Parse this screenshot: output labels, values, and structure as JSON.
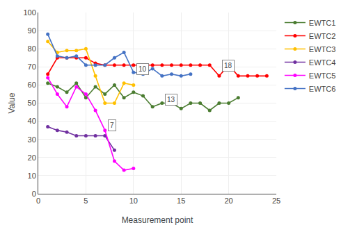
{
  "chart_data": {
    "type": "line",
    "x_label": "Measurement point",
    "y_label": "Value",
    "marker": "circle",
    "line_style": "solid",
    "series": [
      {
        "name": "EWTC1",
        "color": "#4a7c30",
        "x": [
          1,
          2,
          3,
          4,
          5,
          6,
          7,
          8,
          9,
          10,
          11,
          12,
          13,
          14,
          15,
          16,
          17,
          18,
          19,
          20,
          21
        ],
        "values": [
          61,
          59,
          56,
          61,
          53,
          59,
          55,
          60,
          53,
          56,
          54,
          48,
          50,
          50,
          47,
          50,
          50,
          46,
          50,
          50,
          53
        ]
      },
      {
        "name": "EWTC2",
        "color": "#ff0000",
        "x": [
          1,
          2,
          3,
          4,
          5,
          6,
          7,
          8,
          9,
          10,
          11,
          12,
          13,
          14,
          15,
          16,
          17,
          18,
          19,
          20,
          21,
          22,
          23,
          24
        ],
        "values": [
          66,
          75,
          75,
          75,
          75,
          72,
          71,
          71,
          71,
          71,
          71,
          71,
          71,
          71,
          71,
          71,
          71,
          71,
          65,
          71,
          65,
          65,
          65,
          65
        ]
      },
      {
        "name": "EWTC3",
        "color": "#ffc000",
        "x": [
          1,
          2,
          3,
          4,
          5,
          6,
          7,
          8,
          9,
          10
        ],
        "values": [
          84,
          78,
          79,
          79,
          80,
          65,
          50,
          50,
          61,
          60
        ]
      },
      {
        "name": "EWTC4",
        "color": "#7030a0",
        "x": [
          1,
          2,
          3,
          4,
          5,
          6,
          7,
          8
        ],
        "values": [
          37,
          35,
          34,
          32,
          32,
          32,
          32,
          24
        ]
      },
      {
        "name": "EWTC5",
        "color": "#ff00ff",
        "x": [
          1,
          2,
          3,
          4,
          5,
          6,
          7,
          8,
          9,
          10
        ],
        "values": [
          64,
          55,
          48,
          59,
          55,
          46,
          35,
          18,
          13,
          14
        ]
      },
      {
        "name": "EWTC6",
        "color": "#4472c4",
        "x": [
          1,
          2,
          3,
          4,
          5,
          6,
          7,
          8,
          9,
          10,
          11,
          12,
          13,
          14,
          15,
          16
        ],
        "values": [
          88,
          76,
          75,
          76,
          71,
          71,
          71,
          75,
          78,
          67,
          66,
          69,
          65,
          66,
          65,
          66
        ]
      }
    ],
    "annotations": [
      {
        "x": 10,
        "y": 64,
        "text": "10"
      },
      {
        "x": 13,
        "y": 47,
        "text": "13"
      },
      {
        "x": 19,
        "y": 66,
        "text": "18"
      },
      {
        "x": 7,
        "y": 33,
        "text": "7"
      }
    ],
    "xlim": [
      0,
      25
    ],
    "ylim": [
      0,
      100
    ],
    "xticks": [
      0,
      5,
      10,
      15,
      20,
      25
    ],
    "yticks": [
      0,
      10,
      20,
      30,
      40,
      50,
      60,
      70,
      80,
      90,
      100
    ],
    "grid": true,
    "legend": "right"
  }
}
